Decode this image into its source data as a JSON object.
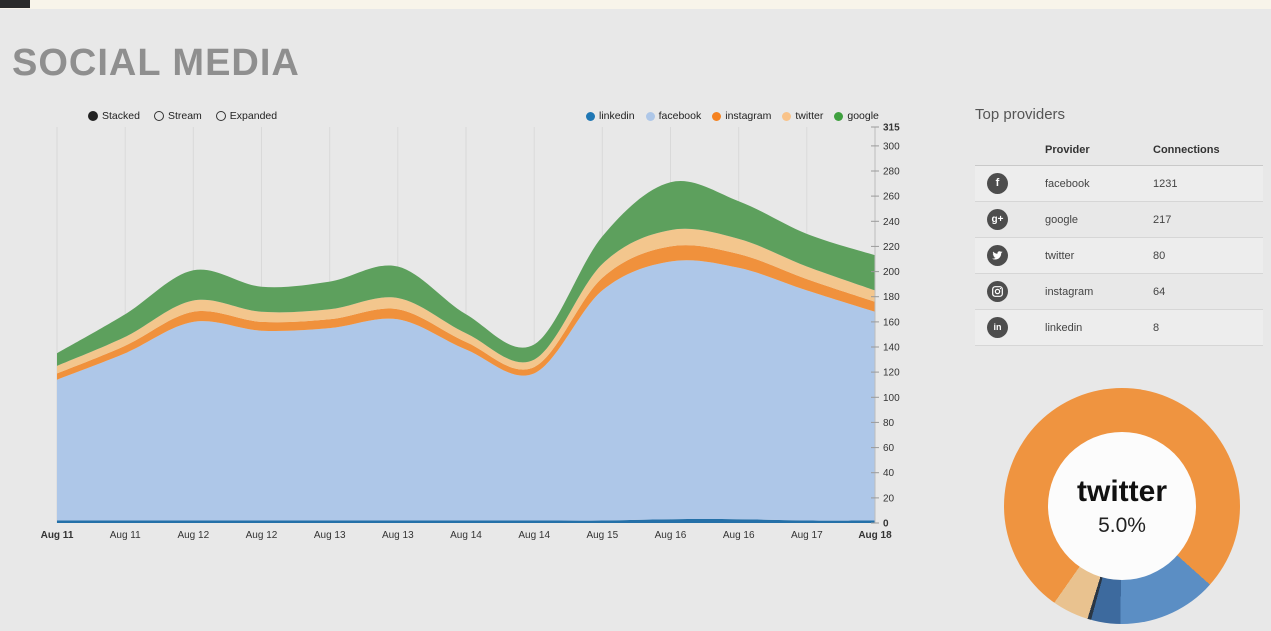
{
  "page": {
    "title": "SOCIAL MEDIA"
  },
  "controls": {
    "modes": [
      {
        "label": "Stacked",
        "selected": true
      },
      {
        "label": "Stream",
        "selected": false
      },
      {
        "label": "Expanded",
        "selected": false
      }
    ]
  },
  "legend": [
    {
      "label": "linkedin",
      "color": "#1f77b4"
    },
    {
      "label": "facebook",
      "color": "#aec7e8"
    },
    {
      "label": "instagram",
      "color": "#f58220"
    },
    {
      "label": "twitter",
      "color": "#f9c389"
    },
    {
      "label": "google",
      "color": "#3fa03f"
    }
  ],
  "chart_data": {
    "type": "area",
    "stacked": true,
    "title": "",
    "xlabel": "",
    "ylabel": "",
    "x_labels": [
      "Aug 11",
      "Aug 11",
      "Aug 12",
      "Aug 12",
      "Aug 13",
      "Aug 13",
      "Aug 14",
      "Aug 14",
      "Aug 15",
      "Aug 16",
      "Aug 16",
      "Aug 17",
      "Aug 18"
    ],
    "y_ticks": [
      0,
      20,
      40,
      60,
      80,
      100,
      120,
      140,
      160,
      180,
      200,
      220,
      240,
      260,
      280,
      300,
      315
    ],
    "ylim": [
      0,
      315
    ],
    "grid": "vertical",
    "legend_position": "top-right",
    "series": [
      {
        "name": "linkedin",
        "color": "#2470a8",
        "values": [
          2,
          2,
          2,
          2,
          2,
          2,
          2,
          2,
          2,
          3,
          3,
          2,
          2
        ]
      },
      {
        "name": "facebook",
        "color": "#aec7e8",
        "values": [
          112,
          133,
          158,
          151,
          153,
          160,
          136,
          117,
          183,
          205,
          200,
          183,
          166
        ]
      },
      {
        "name": "instagram",
        "color": "#f0913c",
        "values": [
          5,
          6,
          8,
          7,
          7,
          8,
          6,
          5,
          10,
          12,
          11,
          9,
          8
        ]
      },
      {
        "name": "twitter",
        "color": "#f3c68d",
        "values": [
          6,
          7,
          9,
          8,
          8,
          9,
          7,
          6,
          11,
          13,
          12,
          10,
          9
        ]
      },
      {
        "name": "google",
        "color": "#5da05d",
        "values": [
          10,
          18,
          24,
          20,
          22,
          25,
          15,
          12,
          22,
          38,
          30,
          26,
          28
        ]
      }
    ]
  },
  "top_providers": {
    "title": "Top providers",
    "columns": [
      "Provider",
      "Connections"
    ],
    "rows": [
      {
        "provider": "facebook",
        "connections": "1231",
        "icon": "facebook-icon"
      },
      {
        "provider": "google",
        "connections": "217",
        "icon": "google-plus-icon"
      },
      {
        "provider": "twitter",
        "connections": "80",
        "icon": "twitter-icon"
      },
      {
        "provider": "instagram",
        "connections": "64",
        "icon": "instagram-icon"
      },
      {
        "provider": "linkedin",
        "connections": "8",
        "icon": "linkedin-icon"
      }
    ]
  },
  "donut": {
    "type": "pie",
    "center_label": "twitter",
    "center_value": "5.0%",
    "start_angle_deg": 215,
    "slices": [
      {
        "name": "facebook",
        "pct": 76.9,
        "color": "#ef9440"
      },
      {
        "name": "google",
        "pct": 13.6,
        "color": "#5b8ec4"
      },
      {
        "name": "instagram",
        "pct": 4.0,
        "color": "#3d6a9e"
      },
      {
        "name": "linkedin",
        "pct": 0.5,
        "color": "#2a3644"
      },
      {
        "name": "twitter",
        "pct": 5.0,
        "color": "#e9c28f"
      }
    ]
  }
}
